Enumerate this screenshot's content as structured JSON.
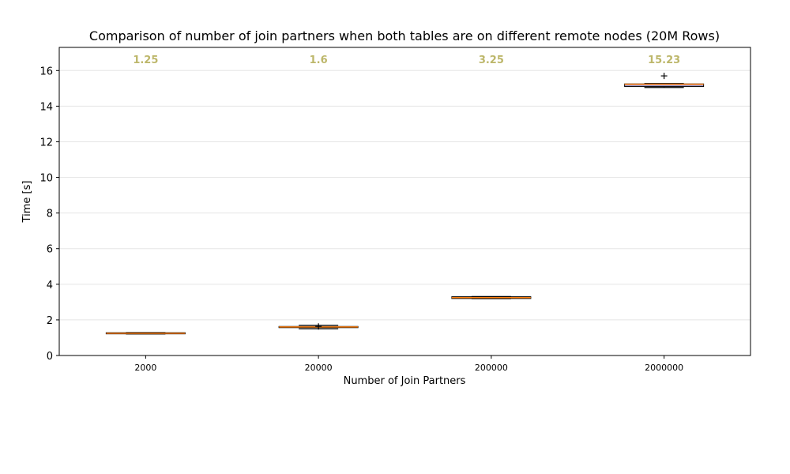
{
  "chart_data": {
    "type": "box",
    "title": "Comparison of number of join partners when both tables are on different remote nodes (20M Rows)",
    "xlabel": "Number of Join Partners",
    "ylabel": "Time [s]",
    "categories": [
      "2000",
      "20000",
      "200000",
      "2000000"
    ],
    "ylim": [
      0,
      17.3
    ],
    "yticks": [
      0,
      2,
      4,
      6,
      8,
      10,
      12,
      14,
      16
    ],
    "grid": "y",
    "boxes": [
      {
        "q1": 1.23,
        "median": 1.25,
        "q3": 1.28,
        "whisker_low": 1.21,
        "whisker_high": 1.29,
        "outliers": []
      },
      {
        "q1": 1.57,
        "median": 1.6,
        "q3": 1.63,
        "whisker_low": 1.5,
        "whisker_high": 1.7,
        "outliers": [
          1.63
        ]
      },
      {
        "q1": 3.2,
        "median": 3.25,
        "q3": 3.3,
        "whisker_low": 3.19,
        "whisker_high": 3.31,
        "outliers": []
      },
      {
        "q1": 15.1,
        "median": 15.23,
        "q3": 15.25,
        "whisker_low": 15.05,
        "whisker_high": 15.27,
        "outliers": [
          15.7
        ]
      }
    ],
    "median_labels": [
      "1.25",
      "1.6",
      "3.25",
      "15.23"
    ],
    "colors": {
      "box_edge": "#000000",
      "median_line": "#ff7f0e",
      "median_label": "#bdb76b",
      "grid": "#e5e5e5",
      "last_box_fill": "#9e9ac8"
    }
  }
}
